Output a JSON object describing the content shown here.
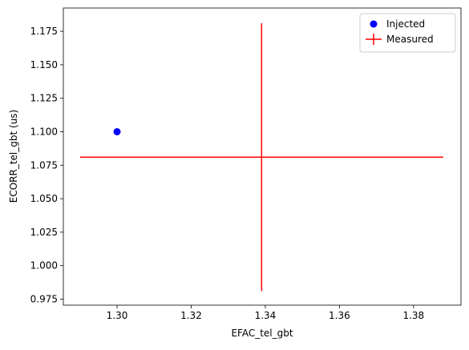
{
  "chart_data": {
    "type": "scatter",
    "title": "",
    "xlabel": "EFAC_tel_gbt",
    "ylabel": "ECORR_tel_gbt (us)",
    "xlim": [
      1.2855,
      1.3928
    ],
    "ylim": [
      0.9705,
      1.1924
    ],
    "xticks": [
      1.3,
      1.32,
      1.34,
      1.36,
      1.38
    ],
    "xtick_labels": [
      "1.30",
      "1.32",
      "1.34",
      "1.36",
      "1.38"
    ],
    "yticks": [
      0.975,
      1.0,
      1.025,
      1.05,
      1.075,
      1.1,
      1.125,
      1.15,
      1.175
    ],
    "ytick_labels": [
      "0.975",
      "1.000",
      "1.025",
      "1.050",
      "1.075",
      "1.100",
      "1.125",
      "1.150",
      "1.175"
    ],
    "grid": false,
    "legend_position": "top-right",
    "series": [
      {
        "name": "Injected",
        "kind": "point",
        "color": "#0000ff",
        "x": 1.3,
        "y": 1.1
      },
      {
        "name": "Measured",
        "kind": "errorbar",
        "color": "#ff0000",
        "x": 1.339,
        "y": 1.081,
        "xerr": 0.049,
        "yerr": 0.1
      }
    ]
  }
}
